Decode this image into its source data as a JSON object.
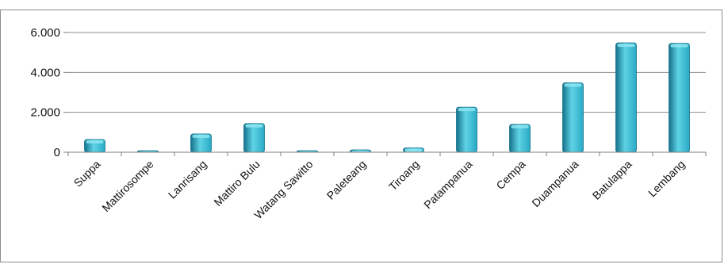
{
  "chart_data": {
    "type": "bar",
    "categories": [
      "Suppa",
      "Mattirosompe",
      "Lanrisang",
      "Mattiro Bulu",
      "Watang Sawitto",
      "Paleteang",
      "Tiroang",
      "Patampanua",
      "Cempa",
      "Duampanua",
      "Batulappa",
      "Lembang"
    ],
    "values": [
      640,
      40,
      920,
      1440,
      10,
      120,
      220,
      2260,
      1400,
      3480,
      5480,
      5460
    ],
    "ylim": [
      0,
      6000
    ],
    "yticks": [
      0,
      2000,
      4000,
      6000
    ],
    "ytick_labels": [
      "0",
      "2.000",
      "4.000",
      "6.000"
    ],
    "title": "",
    "xlabel": "",
    "ylabel": "",
    "grid": true,
    "legend": "none",
    "colors": {
      "bar_light": "#5fd3e6",
      "bar_mid": "#2aa9c4",
      "bar_dark": "#15728a",
      "bar_cap": "#8ee6f2",
      "gridline": "#8c8c8c",
      "axis": "#7f7f7f",
      "frame": "#8c8c8c"
    }
  }
}
